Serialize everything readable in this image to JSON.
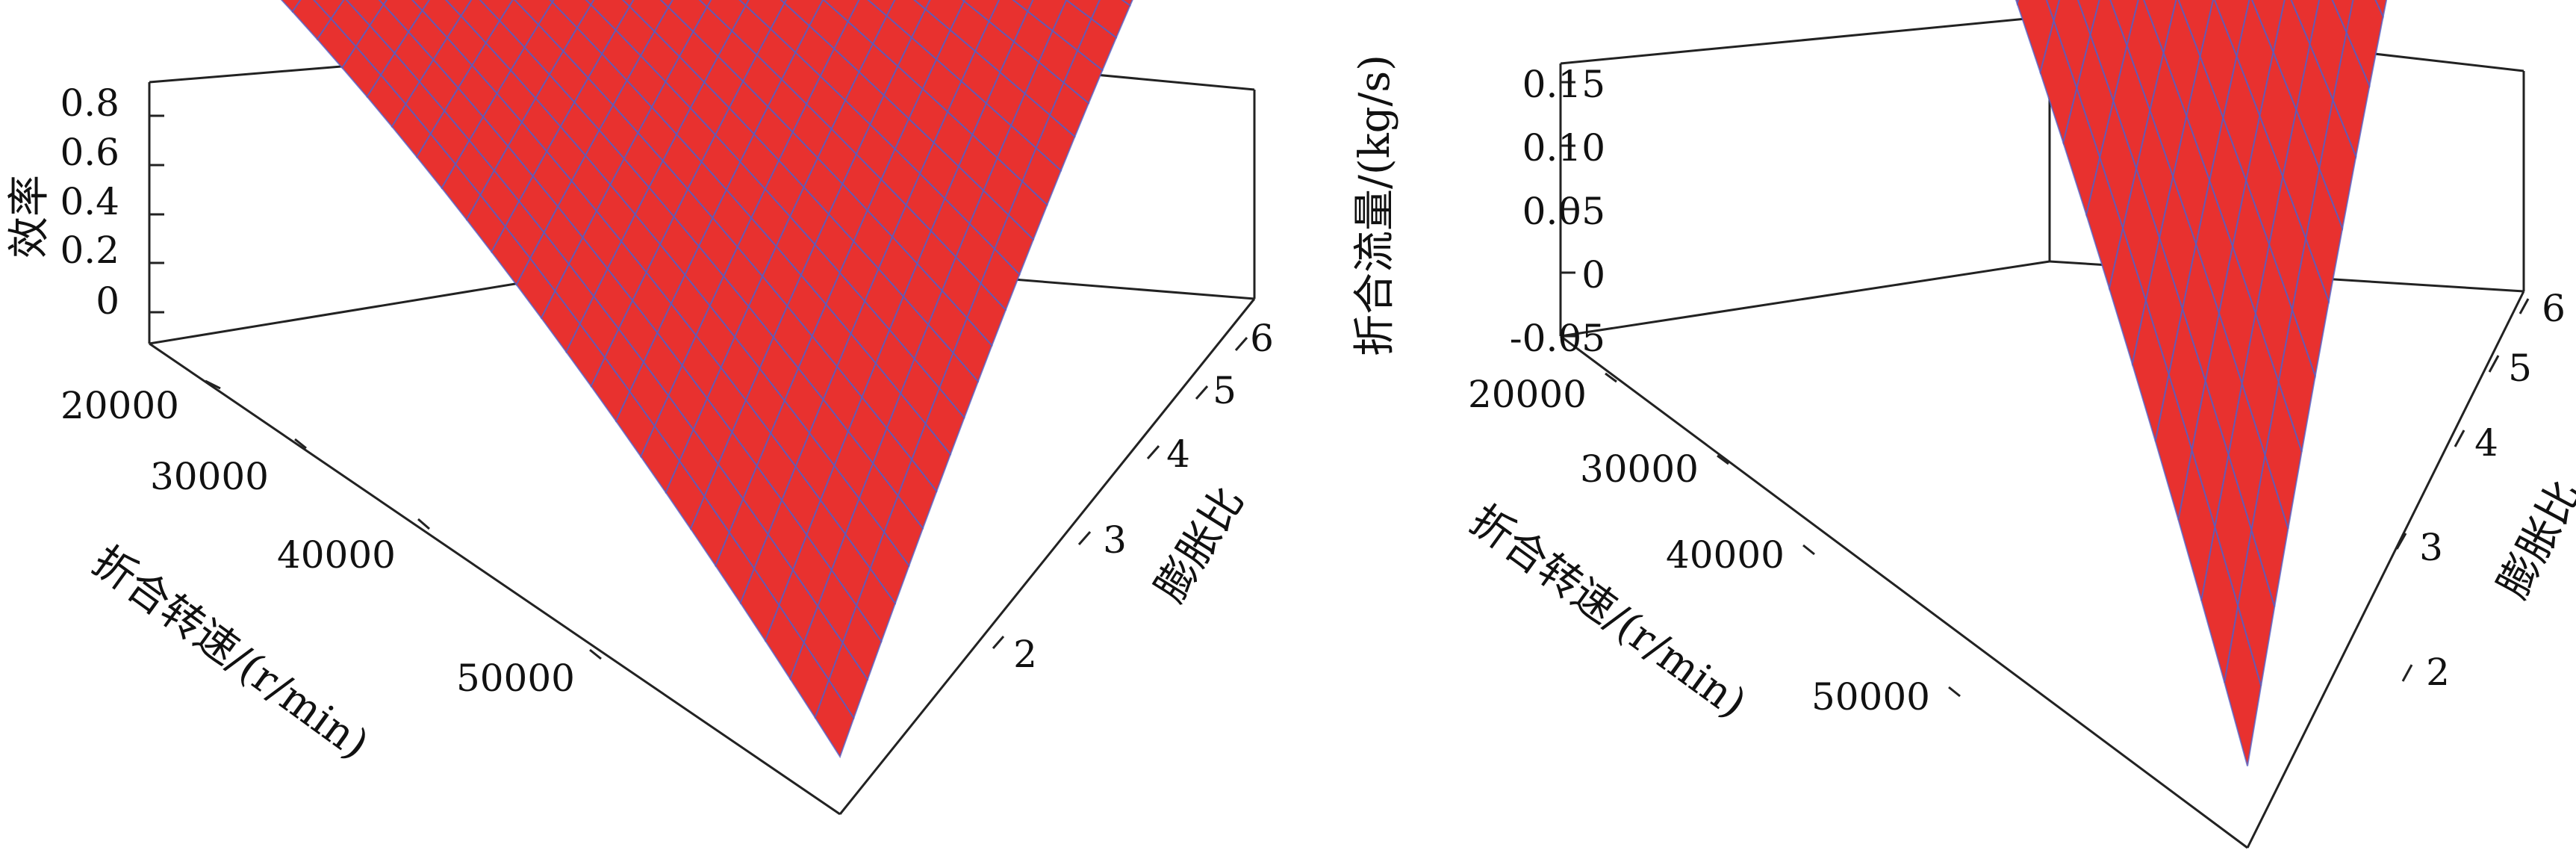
{
  "chart_data": [
    {
      "type": "surface",
      "zlabel": "效率",
      "xlabel": "折合转速/(r/min)",
      "ylabel": "膨胀比",
      "x_ticks": [
        "20000",
        "30000",
        "40000",
        "50000"
      ],
      "y_ticks": [
        "2",
        "3",
        "4",
        "5",
        "6"
      ],
      "z_ticks": [
        "0",
        "0.2",
        "0.4",
        "0.6",
        "0.8"
      ],
      "xlim": [
        15000,
        57000
      ],
      "ylim": [
        1.3,
        6.2
      ],
      "zlim": [
        -0.15,
        0.85
      ],
      "surface_x_range": [
        18000,
        55000
      ],
      "surface_y_range": [
        1.3,
        6
      ],
      "points": [
        {
          "x": 18000,
          "y": 6,
          "z": 0.53
        },
        {
          "x": 18000,
          "y": 1.3,
          "z": 0.62
        },
        {
          "x": 55000,
          "y": 6,
          "z": 0.82
        },
        {
          "x": 55000,
          "y": 1.3,
          "z": -0.04
        },
        {
          "x": 40000,
          "y": 4,
          "z": 0.73
        }
      ],
      "colors": {
        "surface": "#e8312f",
        "mesh": "#5060c8"
      }
    },
    {
      "type": "surface",
      "zlabel": "折合流量/(kg/s)",
      "xlabel": "折合转速/(r/min)",
      "ylabel": "膨胀比",
      "x_ticks": [
        "20000",
        "30000",
        "40000",
        "50000"
      ],
      "y_ticks": [
        "2",
        "3",
        "4",
        "5",
        "6"
      ],
      "z_ticks": [
        "-0.05",
        "0",
        "0.05",
        "0.10",
        "0.15"
      ],
      "xlim": [
        15000,
        57000
      ],
      "ylim": [
        1.3,
        6.2
      ],
      "zlim": [
        -0.07,
        0.17
      ],
      "surface_x_range": [
        18000,
        55000
      ],
      "surface_y_range": [
        1.3,
        6
      ],
      "points": [
        {
          "x": 18000,
          "y": 6,
          "z": 0.12
        },
        {
          "x": 18000,
          "y": 1.3,
          "z": 0.16
        },
        {
          "x": 55000,
          "y": 6,
          "z": 0.165
        },
        {
          "x": 55000,
          "y": 1.3,
          "z": -0.055
        },
        {
          "x": 40000,
          "y": 4,
          "z": 0.15
        }
      ],
      "colors": {
        "surface": "#e8312f",
        "mesh": "#5060c8"
      }
    }
  ]
}
